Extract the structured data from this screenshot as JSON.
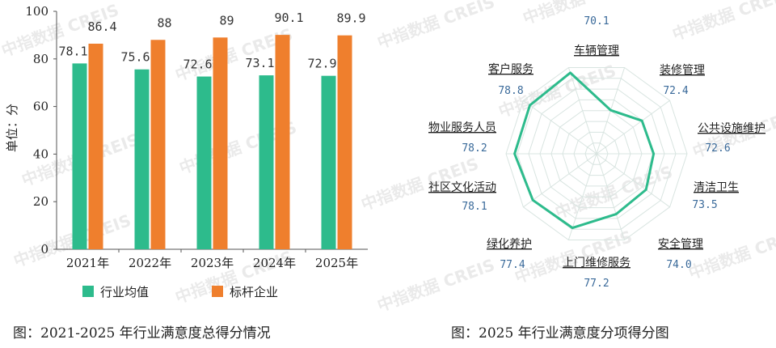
{
  "watermark_text": "中指数据 CREIS",
  "chart_data": [
    {
      "type": "bar",
      "title": "图：2021-2025 年行业满意度总得分情况",
      "ylabel": "单位：分",
      "xlabel": "",
      "ylim": [
        0,
        100
      ],
      "yticks": [
        0,
        20,
        40,
        60,
        80,
        100
      ],
      "categories": [
        "2021年",
        "2022年",
        "2023年",
        "2024年",
        "2025年"
      ],
      "series": [
        {
          "name": "行业均值",
          "color": "#2dbb8c",
          "values": [
            78.1,
            75.6,
            72.6,
            73.1,
            72.9
          ],
          "labels": [
            "78.1",
            "75.6",
            "72.6",
            "73.1",
            "72.9"
          ]
        },
        {
          "name": "标杆企业",
          "color": "#ef7f2d",
          "values": [
            86.4,
            88,
            89,
            90.1,
            89.9
          ],
          "labels": [
            "86.4",
            "88",
            "89",
            "90.1",
            "89.9"
          ]
        }
      ],
      "legend": "bottom",
      "grid": false
    },
    {
      "type": "radar",
      "title": "图：2025 年行业满意度分项得分图",
      "line_color": "#2dbb8c",
      "grid_color": "#d8e4e0",
      "categories": [
        "车辆管理",
        "装修管理",
        "公共设施维护",
        "清洁卫生",
        "安全管理",
        "上门维修服务",
        "绿化养护",
        "社区文化活动",
        "物业服务人员",
        "客户服务"
      ],
      "values": [
        70.1,
        72.4,
        72.6,
        73.5,
        74.0,
        77.2,
        77.4,
        78.1,
        78.2,
        78.8
      ],
      "value_labels": [
        "70.1",
        "72.4",
        "72.6",
        "73.5",
        "74.0",
        "77.2",
        "77.4",
        "78.1",
        "78.2",
        "78.8"
      ],
      "range": [
        60,
        80
      ],
      "grid_levels": 8
    }
  ]
}
